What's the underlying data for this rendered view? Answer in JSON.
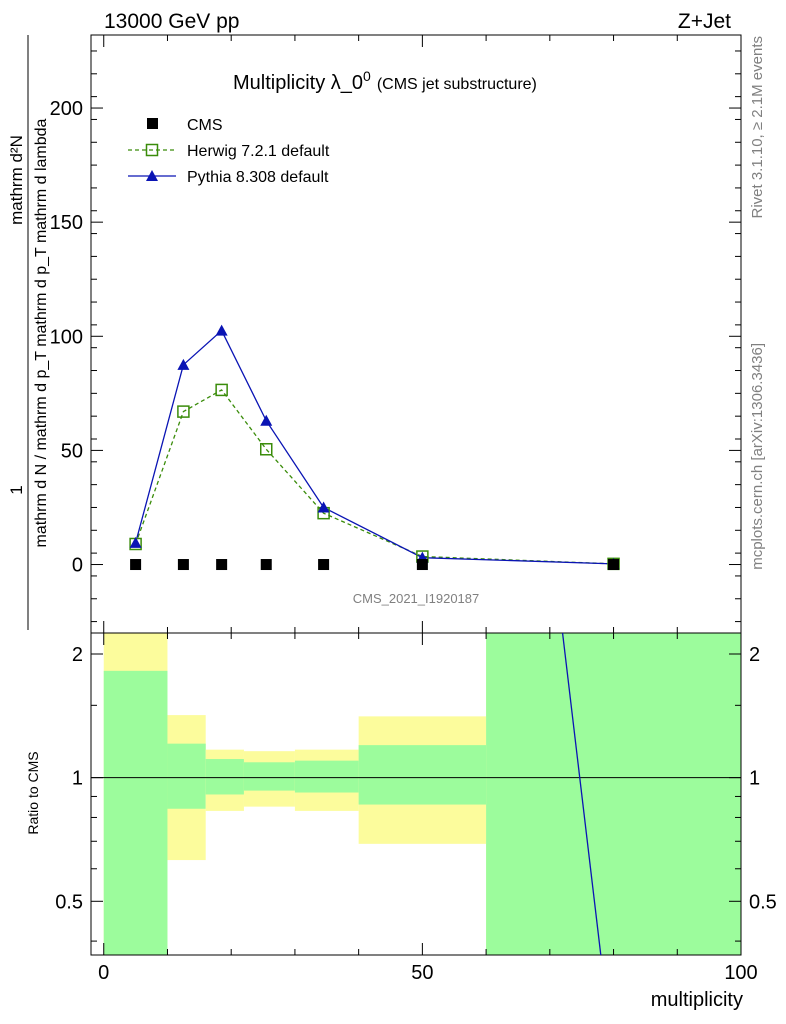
{
  "header": {
    "left": "13000 GeV pp",
    "right": "Z+Jet"
  },
  "plot_title": {
    "main": "Multiplicity λ_0",
    "superscript": "0",
    "suffix": "(CMS jet substructure)"
  },
  "side_labels": {
    "rivet": "Rivet 3.1.10, ≥ 2.1M events",
    "mcplots": "mcplots.cern.ch [arXiv:1306.3436]"
  },
  "watermark": "CMS_2021_I1920187",
  "ylabel_main": {
    "numerator": "1",
    "denominator": "mathrm d N / mathrm d p_T mathrm d p_T mathrm d lambda",
    "numerator_right": "mathrm d²N"
  },
  "ylabel_ratio": "Ratio to CMS",
  "xlabel": "multiplicity",
  "colors": {
    "cms": "#000000",
    "herwig": "#3a8c0a",
    "pythia": "#0a14b4",
    "band_inner": "#9cfc9c",
    "band_outer": "#fcfc9c"
  },
  "legend": [
    {
      "label": "CMS",
      "marker": "square-filled"
    },
    {
      "label": "Herwig 7.2.1 default",
      "marker": "square-open-dashed"
    },
    {
      "label": "Pythia 8.308 default",
      "marker": "triangle-filled-solid"
    }
  ],
  "chart_data": {
    "type": "line",
    "x_range": [
      -2,
      100
    ],
    "x_ticks": [
      0,
      50,
      100
    ],
    "main": {
      "y_range": [
        -30,
        232
      ],
      "y_ticks": [
        0,
        50,
        100,
        150,
        200
      ],
      "series": [
        {
          "name": "CMS",
          "x": [
            5,
            12.5,
            18.5,
            25.5,
            34.5,
            50,
            80
          ],
          "y": [
            0,
            0,
            0,
            0,
            0,
            0,
            0
          ]
        },
        {
          "name": "Herwig 7.2.1 default",
          "x": [
            5,
            12.5,
            18.5,
            25.5,
            34.5,
            50,
            80
          ],
          "y": [
            9,
            67,
            76.5,
            50.5,
            22.5,
            3.5,
            0.3
          ]
        },
        {
          "name": "Pythia 8.308 default",
          "x": [
            5,
            12.5,
            18.5,
            25.5,
            34.5,
            50,
            80
          ],
          "y": [
            9.5,
            87.5,
            102.5,
            63,
            25,
            3,
            0.3
          ]
        }
      ]
    },
    "ratio": {
      "y_range": [
        0.37,
        2.25
      ],
      "y_ticks": [
        0.5,
        1,
        2
      ],
      "y_scale": "log",
      "bands": [
        {
          "x0": 0,
          "x1": 10,
          "inner": [
            0.3,
            1.82
          ],
          "outer": [
            0.3,
            2.4
          ]
        },
        {
          "x0": 10,
          "x1": 16,
          "inner": [
            0.84,
            1.21
          ],
          "outer": [
            0.63,
            1.42
          ]
        },
        {
          "x0": 16,
          "x1": 22,
          "inner": [
            0.91,
            1.11
          ],
          "outer": [
            0.83,
            1.17
          ]
        },
        {
          "x0": 22,
          "x1": 30,
          "inner": [
            0.93,
            1.09
          ],
          "outer": [
            0.85,
            1.16
          ]
        },
        {
          "x0": 30,
          "x1": 40,
          "inner": [
            0.92,
            1.1
          ],
          "outer": [
            0.83,
            1.17
          ]
        },
        {
          "x0": 40,
          "x1": 60,
          "inner": [
            0.86,
            1.2
          ],
          "outer": [
            0.69,
            1.41
          ]
        },
        {
          "x0": 60,
          "x1": 100,
          "inner": [
            0.3,
            2.4
          ],
          "outer": [
            0.3,
            2.4
          ]
        }
      ],
      "pythia_line": {
        "x": [
          72,
          78
        ],
        "y": [
          2.4,
          0.3
        ]
      }
    }
  }
}
